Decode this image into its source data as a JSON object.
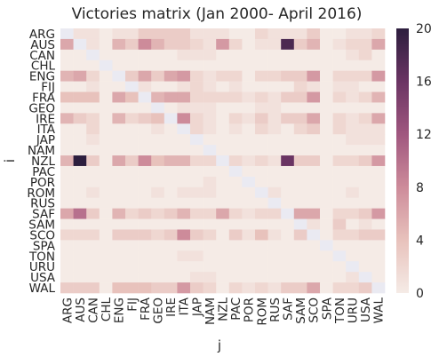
{
  "chart_data": {
    "type": "heatmap",
    "title": "Victories matrix (Jan 2000- April 2016)",
    "xlabel": "j",
    "ylabel": "i",
    "rows": [
      "ARG",
      "AUS",
      "CAN",
      "CHL",
      "ENG",
      "FIJ",
      "FRA",
      "GEO",
      "IRE",
      "ITA",
      "JAP",
      "NAM",
      "NZL",
      "PAC",
      "POR",
      "ROM",
      "RUS",
      "SAF",
      "SAM",
      "SCO",
      "SPA",
      "TON",
      "URU",
      "USA",
      "WAL"
    ],
    "cols": [
      "ARG",
      "AUS",
      "CAN",
      "CHL",
      "ENG",
      "FIJ",
      "FRA",
      "GEO",
      "IRE",
      "ITA",
      "JAP",
      "NAM",
      "NZL",
      "PAC",
      "POR",
      "ROM",
      "RUS",
      "SAF",
      "SAM",
      "SCO",
      "SPA",
      "TON",
      "URU",
      "USA",
      "WAL"
    ],
    "zlim": [
      0,
      20
    ],
    "colorbar_ticks": [
      0,
      4,
      8,
      12,
      16,
      20
    ],
    "diagonal_color": "#eaeaf2",
    "colormap": [
      "#f5ebe6",
      "#e8c2bc",
      "#cd8b9a",
      "#a0577f",
      "#6a3463",
      "#2d1e3e"
    ],
    "values": [
      [
        0,
        1,
        1,
        0,
        1,
        1,
        3,
        3,
        3,
        3,
        1,
        1,
        1,
        0,
        0,
        2,
        1,
        1,
        1,
        3,
        0,
        0,
        1,
        1,
        2
      ],
      [
        6,
        0,
        1,
        0,
        5,
        3,
        8,
        5,
        3,
        3,
        2,
        1,
        7,
        2,
        0,
        1,
        1,
        18,
        3,
        5,
        0,
        1,
        2,
        2,
        6
      ],
      [
        0,
        0,
        0,
        0,
        0,
        0,
        0,
        0,
        0,
        1,
        1,
        1,
        0,
        0,
        0,
        0,
        0,
        0,
        0,
        0,
        0,
        0,
        1,
        2,
        0
      ],
      [
        0,
        0,
        0,
        0,
        0,
        0,
        0,
        0,
        0,
        0,
        0,
        0,
        0,
        0,
        0,
        0,
        0,
        0,
        0,
        0,
        0,
        0,
        0,
        0,
        0
      ],
      [
        5,
        6,
        2,
        0,
        0,
        3,
        6,
        3,
        6,
        7,
        2,
        1,
        2,
        2,
        0,
        2,
        2,
        3,
        3,
        7,
        0,
        2,
        2,
        2,
        7
      ],
      [
        0,
        0,
        1,
        0,
        0,
        0,
        1,
        0,
        0,
        1,
        2,
        1,
        0,
        1,
        0,
        0,
        0,
        0,
        2,
        1,
        0,
        1,
        1,
        0,
        0
      ],
      [
        4,
        4,
        4,
        0,
        6,
        4,
        0,
        5,
        6,
        6,
        2,
        2,
        2,
        2,
        1,
        2,
        1,
        3,
        3,
        7,
        0,
        2,
        1,
        2,
        5
      ],
      [
        0,
        0,
        0,
        0,
        0,
        0,
        0,
        0,
        0,
        1,
        1,
        1,
        0,
        0,
        0,
        1,
        1,
        0,
        0,
        0,
        0,
        0,
        0,
        0,
        0
      ],
      [
        5,
        3,
        2,
        0,
        5,
        2,
        3,
        4,
        0,
        8,
        2,
        1,
        0,
        2,
        1,
        3,
        1,
        3,
        3,
        6,
        0,
        2,
        1,
        2,
        6
      ],
      [
        0,
        0,
        2,
        0,
        0,
        0,
        0,
        1,
        0,
        0,
        2,
        1,
        0,
        1,
        0,
        2,
        1,
        0,
        2,
        3,
        0,
        2,
        1,
        1,
        1
      ],
      [
        0,
        0,
        1,
        0,
        0,
        0,
        0,
        0,
        0,
        0,
        0,
        0,
        0,
        0,
        0,
        0,
        0,
        0,
        0,
        0,
        0,
        0,
        1,
        1,
        1
      ],
      [
        0,
        0,
        0,
        0,
        0,
        0,
        0,
        0,
        0,
        0,
        0,
        0,
        0,
        0,
        0,
        0,
        0,
        0,
        0,
        0,
        0,
        0,
        0,
        0,
        0
      ],
      [
        5,
        20,
        3,
        0,
        6,
        3,
        8,
        4,
        5,
        5,
        2,
        2,
        0,
        2,
        1,
        2,
        1,
        16,
        3,
        3,
        0,
        2,
        2,
        3,
        7
      ],
      [
        0,
        0,
        0,
        0,
        0,
        0,
        0,
        0,
        0,
        0,
        0,
        0,
        0,
        0,
        0,
        0,
        0,
        0,
        0,
        0,
        0,
        0,
        0,
        0,
        0
      ],
      [
        0,
        0,
        0,
        0,
        0,
        0,
        0,
        0,
        0,
        0,
        0,
        1,
        0,
        0,
        0,
        0,
        0,
        0,
        0,
        0,
        0,
        0,
        0,
        0,
        0
      ],
      [
        0,
        0,
        1,
        0,
        0,
        0,
        0,
        1,
        0,
        1,
        1,
        1,
        0,
        0,
        0,
        0,
        1,
        0,
        0,
        0,
        0,
        0,
        1,
        0,
        0
      ],
      [
        0,
        0,
        0,
        0,
        0,
        0,
        0,
        0,
        0,
        0,
        0,
        0,
        0,
        0,
        0,
        0,
        0,
        0,
        0,
        0,
        0,
        0,
        0,
        0,
        0
      ],
      [
        6,
        10,
        3,
        0,
        5,
        2,
        3,
        2,
        3,
        5,
        2,
        2,
        6,
        2,
        1,
        2,
        2,
        0,
        6,
        6,
        0,
        2,
        2,
        3,
        7
      ],
      [
        0,
        0,
        0,
        0,
        0,
        0,
        0,
        0,
        0,
        0,
        0,
        0,
        0,
        0,
        0,
        0,
        0,
        0,
        0,
        1,
        0,
        3,
        0,
        1,
        0
      ],
      [
        2,
        2,
        2,
        0,
        3,
        3,
        3,
        2,
        3,
        8,
        3,
        2,
        0,
        3,
        1,
        4,
        1,
        0,
        3,
        0,
        0,
        2,
        2,
        3,
        3
      ],
      [
        0,
        0,
        0,
        0,
        0,
        0,
        0,
        0,
        0,
        0,
        0,
        0,
        0,
        0,
        0,
        0,
        0,
        0,
        0,
        0,
        0,
        0,
        0,
        0,
        0
      ],
      [
        0,
        0,
        0,
        0,
        0,
        0,
        0,
        0,
        0,
        1,
        1,
        0,
        0,
        0,
        0,
        0,
        0,
        0,
        0,
        0,
        0,
        0,
        0,
        0,
        0
      ],
      [
        0,
        0,
        0,
        0,
        0,
        0,
        0,
        0,
        0,
        0,
        0,
        0,
        0,
        0,
        0,
        0,
        0,
        0,
        0,
        0,
        0,
        0,
        0,
        0,
        0
      ],
      [
        0,
        0,
        0,
        0,
        0,
        0,
        0,
        0,
        0,
        0,
        1,
        1,
        0,
        0,
        0,
        0,
        0,
        0,
        0,
        0,
        0,
        0,
        1,
        0,
        0
      ],
      [
        3,
        3,
        3,
        0,
        4,
        4,
        4,
        3,
        3,
        7,
        3,
        2,
        0,
        2,
        1,
        2,
        1,
        3,
        3,
        6,
        0,
        2,
        2,
        3,
        0
      ]
    ]
  }
}
